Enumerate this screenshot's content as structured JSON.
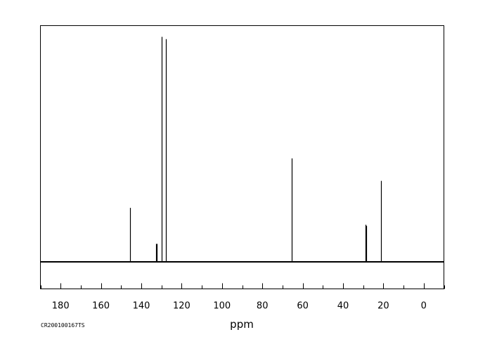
{
  "chart_data": {
    "type": "line",
    "subtype": "nmr-stick-spectrum",
    "title": "",
    "xlabel": "ppm",
    "ylabel": "",
    "sample_id": "CR200100167TS",
    "x_axis": {
      "direction": "reversed",
      "range": [
        190,
        -10
      ],
      "major_ticks": [
        180,
        160,
        140,
        120,
        100,
        80,
        60,
        40,
        20,
        0
      ],
      "tick_labels": [
        "180",
        "160",
        "140",
        "120",
        "100",
        "80",
        "60",
        "40",
        "20",
        "0"
      ],
      "minor_tick_step": 10
    },
    "y_axis": {
      "range": [
        -0.12,
        1.05
      ],
      "shown": false
    },
    "grid": false,
    "legend": "none",
    "peaks": [
      {
        "ppm": 145.5,
        "intensity": 0.24
      },
      {
        "ppm": 132.7,
        "intensity": 0.08
      },
      {
        "ppm": 132.4,
        "intensity": 0.08
      },
      {
        "ppm": 129.9,
        "intensity": 1.0
      },
      {
        "ppm": 127.9,
        "intensity": 0.99
      },
      {
        "ppm": 65.5,
        "intensity": 0.46
      },
      {
        "ppm": 28.9,
        "intensity": 0.165
      },
      {
        "ppm": 28.6,
        "intensity": 0.16
      },
      {
        "ppm": 21.2,
        "intensity": 0.36
      }
    ],
    "baseline_intensity": 0
  }
}
